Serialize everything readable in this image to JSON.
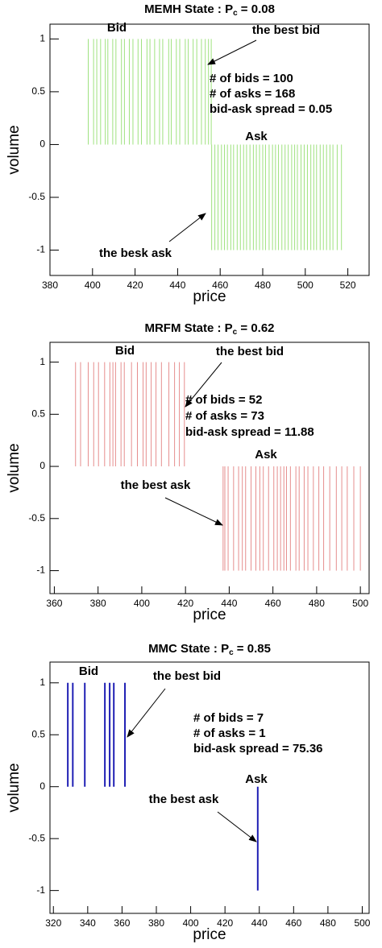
{
  "chart_data": [
    {
      "type": "spike",
      "title": "MEMH State : P",
      "title_subscript": "c",
      "title_suffix": " = 0.08",
      "xlabel": "price",
      "ylabel": "volume",
      "xlim": [
        380,
        530
      ],
      "ylim": [
        -1.24,
        1.14
      ],
      "xticks": [
        380,
        400,
        420,
        440,
        460,
        480,
        500,
        520
      ],
      "yticks": [
        -1,
        -0.5,
        0,
        0.5,
        1
      ],
      "series": [
        {
          "name": "Bid",
          "color": "#9fe27f",
          "x": [
            398,
            400.5,
            402,
            403.8,
            406,
            407.2,
            409.5,
            411,
            413.6,
            415,
            417.3,
            419,
            421.4,
            423,
            425.6,
            427,
            429.2,
            431.5,
            433,
            435.8,
            437,
            439.4,
            441,
            443.6,
            445,
            447.3,
            449,
            451.2,
            453,
            454.5,
            455.8
          ],
          "values": [
            1,
            1,
            1,
            1,
            1,
            1,
            1,
            1,
            1,
            1,
            1,
            1,
            1,
            1,
            1,
            1,
            1,
            1,
            1,
            1,
            1,
            1,
            1,
            1,
            1,
            1,
            1,
            1,
            1,
            1,
            1
          ]
        },
        {
          "name": "Ask",
          "color": "#9fe27f",
          "x": [
            456,
            457.5,
            459,
            460.6,
            462,
            463.4,
            465,
            466.3,
            468,
            469.5,
            471,
            472.4,
            474,
            475.6,
            477,
            478.5,
            480,
            481.3,
            483,
            484.6,
            486,
            487.4,
            489,
            490.5,
            492,
            493.6,
            495,
            496.3,
            498,
            499.5,
            501,
            502.6,
            504,
            505.3,
            507,
            508.5,
            510,
            511.6,
            513,
            515,
            517
          ],
          "values": [
            -1,
            -1,
            -1,
            -1,
            -1,
            -1,
            -1,
            -1,
            -1,
            -1,
            -1,
            -1,
            -1,
            -1,
            -1,
            -1,
            -1,
            -1,
            -1,
            -1,
            -1,
            -1,
            -1,
            -1,
            -1,
            -1,
            -1,
            -1,
            -1,
            -1,
            -1,
            -1,
            -1,
            -1,
            -1,
            -1,
            -1,
            -1,
            -1,
            -1,
            -1
          ]
        }
      ],
      "annotations": [
        "the best bid",
        "the besk ask",
        "# of bids = 100",
        "# of asks = 168",
        "bid-ask spread = 0.05"
      ]
    },
    {
      "type": "spike",
      "title": "MRFM State : P",
      "title_subscript": "c",
      "title_suffix": " = 0.62",
      "xlabel": "price",
      "ylabel": "volume",
      "xlim": [
        358,
        504
      ],
      "ylim": [
        -1.22,
        1.19
      ],
      "xticks": [
        360,
        380,
        400,
        420,
        440,
        460,
        480,
        500
      ],
      "yticks": [
        -1,
        -0.5,
        0,
        0.5,
        1
      ],
      "series": [
        {
          "name": "Bid",
          "color": "#e68e8e",
          "x": [
            369.7,
            372,
            375.5,
            378,
            380.2,
            383,
            385.4,
            386.8,
            388,
            390.5,
            392,
            395.3,
            398,
            400.6,
            402,
            404.3,
            406.5,
            409,
            412.4,
            415,
            417.2,
            419.5
          ],
          "values": [
            1,
            1,
            1,
            1,
            1,
            1,
            1,
            1,
            1,
            1,
            1,
            1,
            1,
            1,
            1,
            1,
            1,
            1,
            1,
            1,
            1,
            1
          ]
        },
        {
          "name": "Ask",
          "color": "#e68e8e",
          "x": [
            437.2,
            438,
            439.5,
            442,
            444.3,
            446,
            447.5,
            450,
            452.2,
            454,
            455.6,
            458,
            460.4,
            462,
            463.5,
            465,
            466.2,
            468,
            470.5,
            472,
            474.3,
            476,
            478.5,
            481,
            483.2,
            486,
            489,
            491.5,
            494,
            497,
            500
          ],
          "values": [
            -1,
            -1,
            -1,
            -1,
            -1,
            -1,
            -1,
            -1,
            -1,
            -1,
            -1,
            -1,
            -1,
            -1,
            -1,
            -1,
            -1,
            -1,
            -1,
            -1,
            -1,
            -1,
            -1,
            -1,
            -1,
            -1,
            -1,
            -1,
            -1,
            -1,
            -1
          ]
        }
      ],
      "annotations": [
        "the best bid",
        "the best ask",
        "# of bids = 52",
        "# of asks = 73",
        "bid-ask spread = 11.88"
      ]
    },
    {
      "type": "spike",
      "title": "MMC State : P",
      "title_subscript": "c",
      "title_suffix": " = 0.85",
      "xlabel": "price",
      "ylabel": "volume",
      "xlim": [
        318,
        504
      ],
      "ylim": [
        -1.22,
        1.2
      ],
      "xticks": [
        320,
        340,
        360,
        380,
        400,
        420,
        440,
        460,
        480,
        500
      ],
      "yticks": [
        -1,
        -0.5,
        0,
        0.5,
        1
      ],
      "series": [
        {
          "name": "Bid",
          "color": "#1f1fb4",
          "x": [
            328.4,
            331.3,
            338.3,
            350,
            352.8,
            355.2,
            361.7
          ],
          "values": [
            1,
            1,
            1,
            1,
            1,
            1,
            1
          ]
        },
        {
          "name": "Ask",
          "color": "#1f1fb4",
          "x": [
            439.1
          ],
          "values": [
            -1
          ]
        }
      ],
      "annotations": [
        "the best bid",
        "the best ask",
        "# of bids = 7",
        "# of asks = 1",
        "bid-ask spread = 75.36"
      ]
    }
  ]
}
